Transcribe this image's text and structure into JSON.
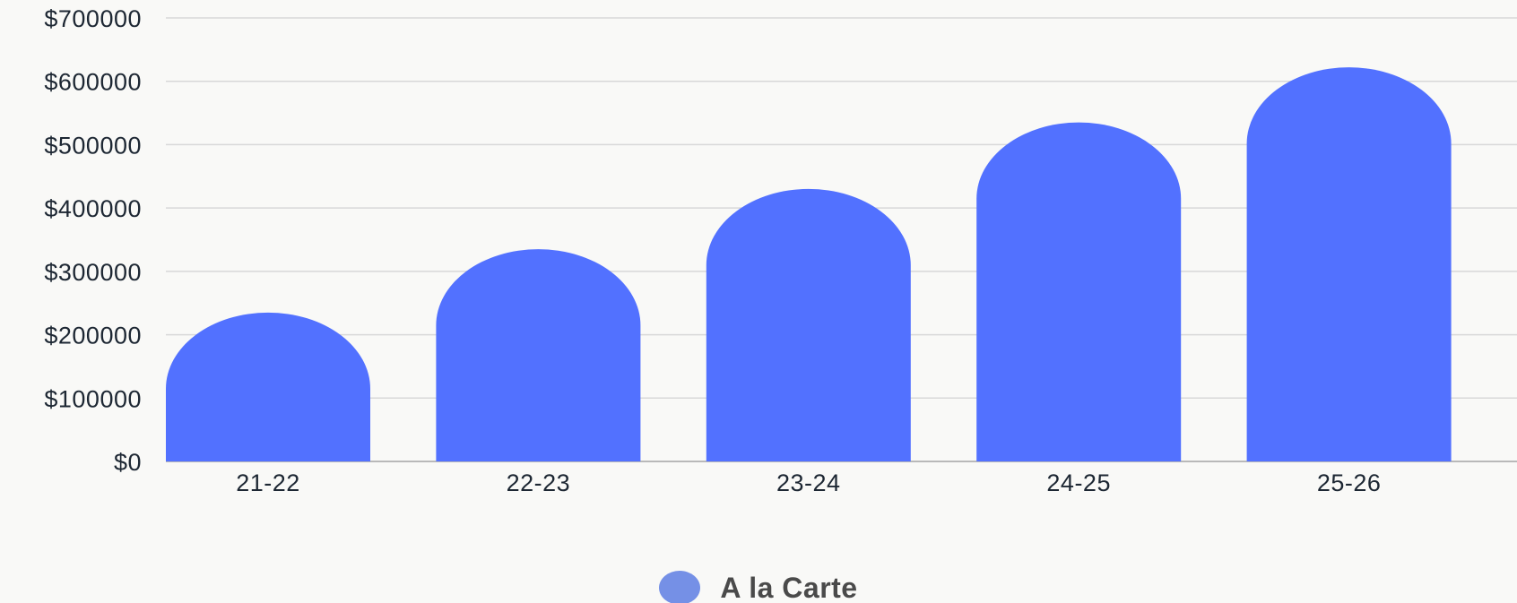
{
  "colors": {
    "bar": "#5271ff",
    "legend_swatch": "#7590e6",
    "grid": "#d8d8d8",
    "axis": "#b9b9b9",
    "text": "#1d2733"
  },
  "chart_data": {
    "type": "bar",
    "categories": [
      "21-22",
      "22-23",
      "23-24",
      "24-25",
      "25-26"
    ],
    "series": [
      {
        "name": "A la Carte",
        "values": [
          235000,
          335000,
          430000,
          535000,
          622000
        ]
      }
    ],
    "ylim": [
      0,
      700000
    ],
    "yticks": [
      0,
      100000,
      200000,
      300000,
      400000,
      500000,
      600000,
      700000
    ],
    "ytick_labels": [
      "$0",
      "$100000",
      "$200000",
      "$300000",
      "$400000",
      "$500000",
      "$600000",
      "$700000"
    ],
    "grid": true,
    "legend": "bottom-center"
  }
}
